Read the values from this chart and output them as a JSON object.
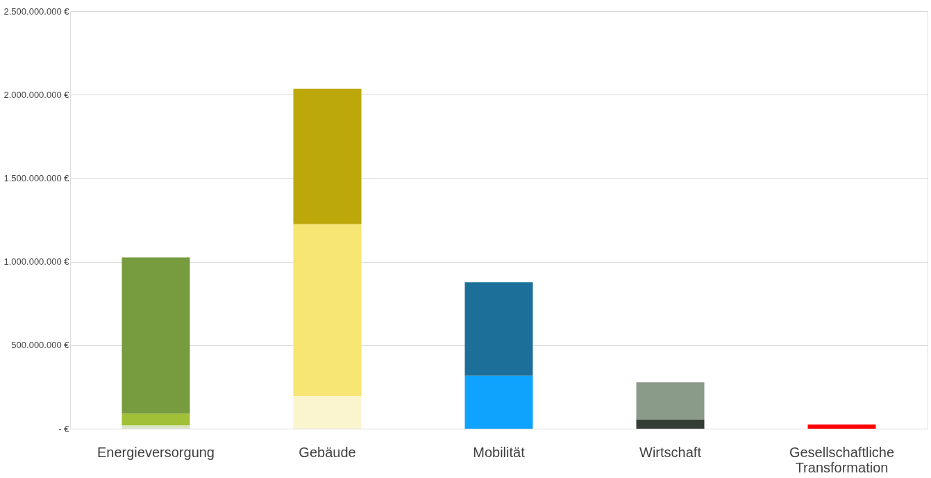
{
  "chart_data": {
    "type": "bar",
    "stacked": true,
    "categories": [
      "Energieversorgung",
      "Gebäude",
      "Mobilität",
      "Wirtschaft",
      "Gesellschaftliche Transformation"
    ],
    "series": [
      {
        "colors": [
          "#d9e5c5",
          "#fbf5cf",
          "#0fa3fe",
          "#343d34",
          "#ff0000"
        ],
        "values": [
          20000000,
          195000000,
          317000000,
          55000000,
          25000000
        ]
      },
      {
        "colors": [
          "#a2c037",
          "#f7e574",
          null,
          null,
          null
        ],
        "values": [
          70000000,
          1030000000,
          null,
          null,
          null
        ]
      },
      {
        "colors": [
          "#779b3f",
          "#bda80b",
          "#1c6f99",
          "#8a9b89",
          null
        ],
        "values": [
          935000000,
          810000000,
          560000000,
          223000000,
          null
        ]
      }
    ],
    "ylim": [
      0,
      2500000000
    ],
    "yticks": [
      {
        "value": 0,
        "label": "-   €"
      },
      {
        "value": 500000000,
        "label": "500.000.000 €"
      },
      {
        "value": 1000000000,
        "label": "1.000.000.000 €"
      },
      {
        "value": 1500000000,
        "label": "1.500.000.000 €"
      },
      {
        "value": 2000000000,
        "label": "2.000.000.000 €"
      },
      {
        "value": 2500000000,
        "label": "2.500.000.000 €"
      }
    ],
    "grid": "y",
    "legend": false
  }
}
